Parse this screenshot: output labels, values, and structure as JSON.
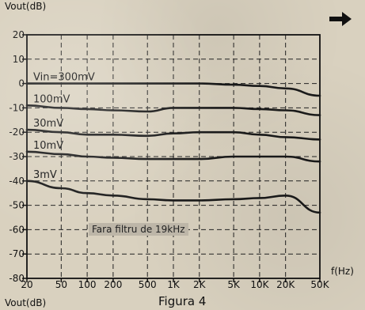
{
  "y_title_top": "Vout(dB)",
  "y_title_bottom": "Vout(dB)",
  "x_unit": "f(Hz)",
  "figure_caption": "Figura 4",
  "annotation": "Fara filtru de 19kHz",
  "arrow_icon": "arrow-right-icon",
  "chart_data": {
    "type": "line",
    "title": "",
    "x_scale": "log",
    "xlim": [
      20,
      50000
    ],
    "ylim": [
      -80,
      20
    ],
    "grid": true,
    "x_tick_values": [
      20,
      50,
      100,
      200,
      500,
      1000,
      2000,
      5000,
      10000,
      20000,
      50000
    ],
    "x_tick_labels": [
      "20",
      "50",
      "100",
      "200",
      "500",
      "1K",
      "2K",
      "5K",
      "10K",
      "20K",
      "50K"
    ],
    "y_ticks": [
      20,
      10,
      0,
      -10,
      -20,
      -30,
      -40,
      -50,
      -60,
      -70,
      -80
    ],
    "x": [
      20,
      50,
      100,
      200,
      500,
      1000,
      2000,
      5000,
      10000,
      20000,
      50000
    ],
    "series": [
      {
        "name": "Vin=300mV",
        "values": [
          0,
          0,
          0,
          0,
          0,
          0,
          0,
          -0.5,
          -1,
          -2,
          -5
        ]
      },
      {
        "name": "100mV",
        "values": [
          -9,
          -10,
          -10.5,
          -11,
          -11.5,
          -10,
          -10,
          -10,
          -10.5,
          -11,
          -13
        ]
      },
      {
        "name": "30mV",
        "values": [
          -19,
          -20,
          -21,
          -21,
          -21.5,
          -20.5,
          -20,
          -20,
          -21,
          -22,
          -23
        ]
      },
      {
        "name": "10mV",
        "values": [
          -28,
          -29,
          -30,
          -30.5,
          -31,
          -31,
          -31,
          -30,
          -30,
          -30,
          -32
        ]
      },
      {
        "name": "3mV",
        "values": [
          -40,
          -43,
          -45,
          -46,
          -47.5,
          -48,
          -48,
          -47.5,
          -47,
          -46,
          -53
        ]
      }
    ]
  }
}
